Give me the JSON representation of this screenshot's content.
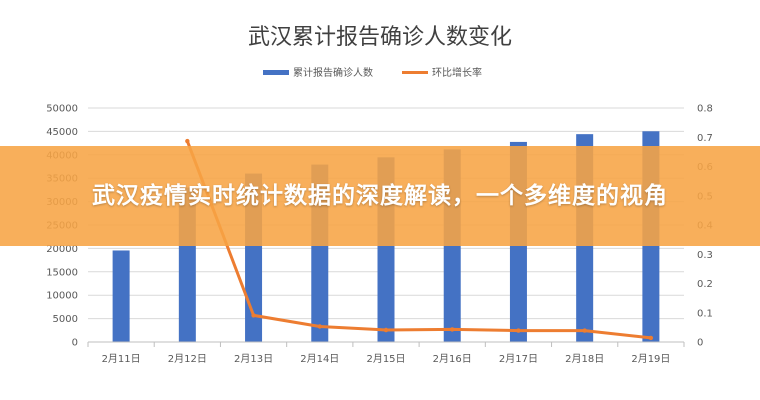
{
  "chart_data": {
    "type": "bar-line",
    "title": "武汉累计报告确诊人数变化",
    "categories": [
      "2月11日",
      "2月12日",
      "2月13日",
      "2月14日",
      "2月15日",
      "2月16日",
      "2月17日",
      "2月18日",
      "2月19日"
    ],
    "series": [
      {
        "name": "累计报告确诊人数",
        "type": "bar",
        "axis": "left",
        "color": "#4472c4",
        "values": [
          19558,
          32994,
          35991,
          37914,
          39462,
          41152,
          42752,
          44412,
          45027
        ]
      },
      {
        "name": "环比增长率",
        "type": "line",
        "axis": "right",
        "color": "#ed7d31",
        "values": [
          null,
          0.687,
          0.091,
          0.053,
          0.041,
          0.043,
          0.039,
          0.039,
          0.014
        ]
      }
    ],
    "y_left": {
      "min": 0,
      "max": 50000,
      "ticks": [
        "0",
        "5000",
        "10000",
        "15000",
        "20000",
        "25000",
        "30000",
        "35000",
        "40000",
        "45000",
        "50000"
      ]
    },
    "y_right": {
      "min": 0,
      "max": 0.8,
      "ticks": [
        "0",
        "0.1",
        "0.2",
        "0.3",
        "0.4",
        "0.5",
        "0.6",
        "0.7",
        "0.8"
      ]
    },
    "grid": true,
    "legend_position": "top"
  },
  "banner": {
    "text": "武汉疫情实时统计数据的深度解读，一个多维度的视角"
  }
}
